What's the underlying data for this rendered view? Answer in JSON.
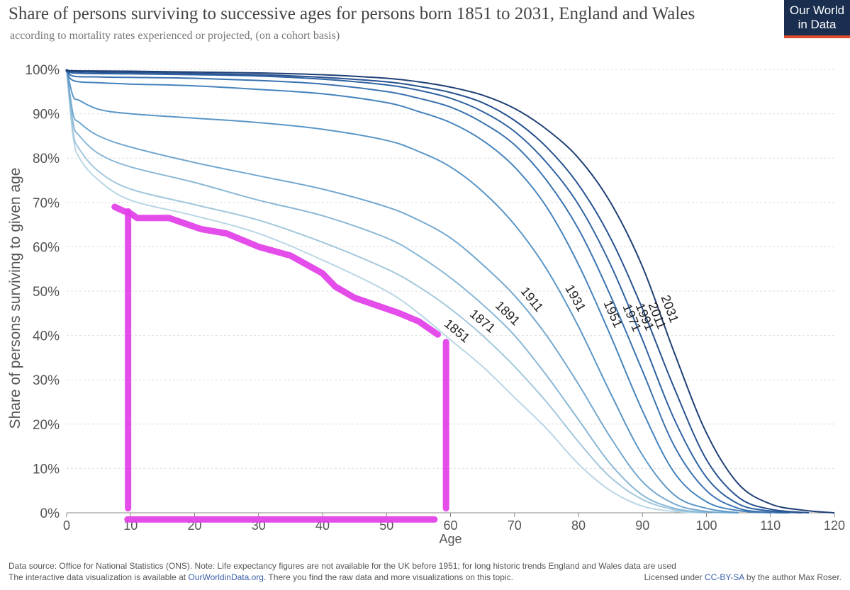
{
  "header": {
    "title": "Share of persons surviving  to successive ages for persons born 1851 to 2031, England and Wales",
    "subtitle": "according to mortality rates experienced or projected, (on a cohort basis)",
    "logo_line1": "Our World",
    "logo_line2": "in Data"
  },
  "footer": {
    "source": "Data source: Office for National Statistics (ONS). Note: Life expectancy figures are not available for the UK before 1951; for long historic trends England and Wales data are used",
    "interactive_prefix": "The interactive data visualization is available at ",
    "interactive_link": "OurWorldinData.org",
    "interactive_suffix": ". There you find the raw data and more visualizations on this topic.",
    "license_prefix": "Licensed under ",
    "license_link": "CC-BY-SA",
    "license_suffix": " by the author Max Roser."
  },
  "colors": {
    "annotation": "#e23ee8",
    "grid": "#dddddd",
    "axis_text": "#555555"
  },
  "chart_data": {
    "type": "line",
    "title": "Share of persons surviving  to successive ages for persons born 1851 to 2031, England and Wales",
    "xlabel": "Age",
    "ylabel": "Share of persons surviving to given age",
    "xlim": [
      0,
      120
    ],
    "ylim": [
      0,
      100
    ],
    "x_ticks": [
      "0",
      "10",
      "20",
      "30",
      "40",
      "50",
      "60",
      "70",
      "80",
      "90",
      "100",
      "110",
      "120"
    ],
    "y_ticks": [
      "0%",
      "10%",
      "20%",
      "30%",
      "40%",
      "50%",
      "60%",
      "70%",
      "80%",
      "90%",
      "100%"
    ],
    "series": [
      {
        "name": "1851",
        "color": "#b9d6e4",
        "points": [
          [
            0,
            100
          ],
          [
            1,
            85
          ],
          [
            2,
            80
          ],
          [
            5,
            75
          ],
          [
            10,
            70.5
          ],
          [
            20,
            67
          ],
          [
            30,
            63
          ],
          [
            40,
            57
          ],
          [
            50,
            50
          ],
          [
            55,
            45
          ],
          [
            60,
            39
          ],
          [
            65,
            33
          ],
          [
            70,
            26
          ],
          [
            75,
            19
          ],
          [
            80,
            11
          ],
          [
            85,
            5
          ],
          [
            90,
            1.5
          ],
          [
            95,
            0.3
          ],
          [
            100,
            0
          ]
        ],
        "label_age": 58
      },
      {
        "name": "1871",
        "color": "#a3c7dd",
        "points": [
          [
            0,
            100
          ],
          [
            1,
            86
          ],
          [
            2,
            82
          ],
          [
            5,
            77
          ],
          [
            10,
            73
          ],
          [
            20,
            69.5
          ],
          [
            30,
            66
          ],
          [
            40,
            61
          ],
          [
            50,
            55
          ],
          [
            55,
            51
          ],
          [
            60,
            46
          ],
          [
            65,
            40
          ],
          [
            70,
            33
          ],
          [
            75,
            25
          ],
          [
            80,
            16
          ],
          [
            85,
            8
          ],
          [
            90,
            3
          ],
          [
            95,
            0.7
          ],
          [
            100,
            0
          ]
        ],
        "label_age": 62
      },
      {
        "name": "1891",
        "color": "#8ab8d6",
        "points": [
          [
            0,
            100
          ],
          [
            1,
            88
          ],
          [
            2,
            85
          ],
          [
            5,
            81
          ],
          [
            10,
            78
          ],
          [
            20,
            74.5
          ],
          [
            30,
            70.5
          ],
          [
            40,
            67
          ],
          [
            50,
            62
          ],
          [
            55,
            58
          ],
          [
            60,
            53
          ],
          [
            65,
            47
          ],
          [
            70,
            40
          ],
          [
            75,
            31
          ],
          [
            80,
            21
          ],
          [
            85,
            11
          ],
          [
            90,
            4
          ],
          [
            95,
            1
          ],
          [
            100,
            0
          ]
        ],
        "label_age": 66
      },
      {
        "name": "1911",
        "color": "#74a8cf",
        "points": [
          [
            0,
            100
          ],
          [
            1,
            90
          ],
          [
            2,
            88
          ],
          [
            5,
            85
          ],
          [
            10,
            82.5
          ],
          [
            20,
            79
          ],
          [
            30,
            76
          ],
          [
            40,
            73
          ],
          [
            50,
            69
          ],
          [
            55,
            66
          ],
          [
            60,
            62
          ],
          [
            65,
            56
          ],
          [
            70,
            49
          ],
          [
            75,
            40
          ],
          [
            80,
            29
          ],
          [
            85,
            17
          ],
          [
            90,
            7
          ],
          [
            95,
            2
          ],
          [
            100,
            0.3
          ],
          [
            105,
            0
          ]
        ],
        "label_age": 70
      },
      {
        "name": "1931",
        "color": "#5a96c6",
        "points": [
          [
            0,
            100
          ],
          [
            1,
            94
          ],
          [
            2,
            93
          ],
          [
            5,
            91
          ],
          [
            10,
            90
          ],
          [
            20,
            89
          ],
          [
            30,
            88
          ],
          [
            40,
            86.5
          ],
          [
            50,
            84
          ],
          [
            55,
            81.5
          ],
          [
            60,
            78
          ],
          [
            65,
            72.5
          ],
          [
            70,
            65
          ],
          [
            75,
            55
          ],
          [
            80,
            42
          ],
          [
            85,
            27
          ],
          [
            90,
            13
          ],
          [
            95,
            4
          ],
          [
            100,
            1
          ],
          [
            105,
            0
          ]
        ],
        "label_age": 77
      },
      {
        "name": "1951",
        "color": "#4583bd",
        "points": [
          [
            0,
            100
          ],
          [
            1,
            97.5
          ],
          [
            5,
            97
          ],
          [
            10,
            96.7
          ],
          [
            20,
            96.3
          ],
          [
            30,
            95.5
          ],
          [
            40,
            94.5
          ],
          [
            50,
            92.5
          ],
          [
            55,
            90.5
          ],
          [
            60,
            88
          ],
          [
            65,
            84
          ],
          [
            70,
            78
          ],
          [
            75,
            69
          ],
          [
            80,
            56
          ],
          [
            85,
            40
          ],
          [
            90,
            23
          ],
          [
            95,
            9
          ],
          [
            100,
            2.5
          ],
          [
            105,
            0.5
          ],
          [
            110,
            0
          ]
        ],
        "label_age": 83
      },
      {
        "name": "1971",
        "color": "#3a72b0",
        "points": [
          [
            0,
            100
          ],
          [
            1,
            98.5
          ],
          [
            5,
            98.3
          ],
          [
            10,
            98.2
          ],
          [
            20,
            98
          ],
          [
            30,
            97.5
          ],
          [
            40,
            96.7
          ],
          [
            50,
            95
          ],
          [
            55,
            93.5
          ],
          [
            60,
            91.5
          ],
          [
            65,
            88
          ],
          [
            70,
            83
          ],
          [
            75,
            75
          ],
          [
            80,
            64
          ],
          [
            85,
            49
          ],
          [
            90,
            32
          ],
          [
            95,
            15
          ],
          [
            100,
            5
          ],
          [
            105,
            1
          ],
          [
            110,
            0.1
          ],
          [
            113,
            0
          ]
        ],
        "label_age": 86
      },
      {
        "name": "1991",
        "color": "#2f62a1",
        "points": [
          [
            0,
            100
          ],
          [
            1,
            99.2
          ],
          [
            10,
            99
          ],
          [
            20,
            98.8
          ],
          [
            30,
            98.5
          ],
          [
            40,
            97.8
          ],
          [
            50,
            96.5
          ],
          [
            55,
            95.3
          ],
          [
            60,
            93.5
          ],
          [
            65,
            90.5
          ],
          [
            70,
            86
          ],
          [
            75,
            79
          ],
          [
            80,
            69.5
          ],
          [
            85,
            56
          ],
          [
            90,
            39
          ],
          [
            95,
            21
          ],
          [
            100,
            8
          ],
          [
            105,
            2
          ],
          [
            110,
            0.4
          ],
          [
            115,
            0
          ]
        ],
        "label_age": 88
      },
      {
        "name": "2011",
        "color": "#275190",
        "points": [
          [
            0,
            100
          ],
          [
            1,
            99.5
          ],
          [
            10,
            99.3
          ],
          [
            20,
            99.1
          ],
          [
            30,
            98.8
          ],
          [
            40,
            98.2
          ],
          [
            50,
            97.2
          ],
          [
            55,
            96.2
          ],
          [
            60,
            94.8
          ],
          [
            65,
            92.5
          ],
          [
            70,
            88.5
          ],
          [
            75,
            82.5
          ],
          [
            80,
            74
          ],
          [
            85,
            62
          ],
          [
            90,
            46
          ],
          [
            95,
            28
          ],
          [
            100,
            12
          ],
          [
            105,
            3.5
          ],
          [
            110,
            0.8
          ],
          [
            116,
            0
          ]
        ],
        "label_age": 90
      },
      {
        "name": "2031",
        "color": "#1f3f75",
        "points": [
          [
            0,
            100
          ],
          [
            1,
            99.7
          ],
          [
            10,
            99.6
          ],
          [
            20,
            99.4
          ],
          [
            30,
            99.2
          ],
          [
            40,
            98.8
          ],
          [
            50,
            98
          ],
          [
            55,
            97.2
          ],
          [
            60,
            96
          ],
          [
            65,
            94.2
          ],
          [
            70,
            91.2
          ],
          [
            75,
            86.5
          ],
          [
            80,
            80
          ],
          [
            85,
            70
          ],
          [
            90,
            55.5
          ],
          [
            95,
            36
          ],
          [
            100,
            18
          ],
          [
            105,
            6.5
          ],
          [
            110,
            2
          ],
          [
            115,
            0.6
          ],
          [
            120,
            0
          ]
        ],
        "label_age": 92
      }
    ],
    "annotation": {
      "note": "hand-drawn magenta highlight around 1851 cohort from age 10 to 58",
      "curve": [
        [
          7.5,
          69
        ],
        [
          9,
          68
        ],
        [
          10,
          67.5
        ],
        [
          11,
          66.5
        ],
        [
          13,
          66.5
        ],
        [
          16,
          66.5
        ],
        [
          18,
          65.5
        ],
        [
          21,
          64
        ],
        [
          25,
          63
        ],
        [
          30,
          60
        ],
        [
          35,
          58
        ],
        [
          40,
          54
        ],
        [
          42,
          51
        ],
        [
          45,
          48.5
        ],
        [
          48,
          47
        ],
        [
          52,
          45
        ],
        [
          55,
          43.2
        ],
        [
          58,
          40.2
        ]
      ],
      "left_line": {
        "x": 9.6,
        "y_top": 68,
        "y_bottom": 1
      },
      "right_line": {
        "x": 59.3,
        "y_top": 38.5,
        "y_bottom": 1
      },
      "bottom_line": {
        "x_start": 9.5,
        "x_end": 57.5,
        "y": -1.5
      }
    }
  }
}
